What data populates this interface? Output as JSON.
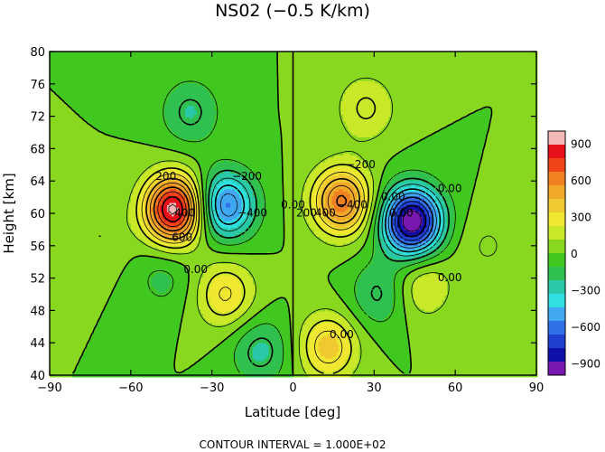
{
  "chart_data": {
    "type": "heatmap",
    "title": "NS02 (−0.5 K/km)",
    "xlabel": "Latitude [deg]",
    "ylabel": "Height [km]",
    "xlim": [
      -90,
      90
    ],
    "ylim": [
      40,
      80
    ],
    "x_ticks": [
      -90,
      -60,
      -30,
      0,
      30,
      60,
      90
    ],
    "y_ticks": [
      40,
      44,
      48,
      52,
      56,
      60,
      64,
      68,
      72,
      76,
      80
    ],
    "x_tick_labels": [
      "−90",
      "−60",
      "−30",
      "0",
      "30",
      "60",
      "90"
    ],
    "y_tick_labels": [
      "40",
      "44",
      "48",
      "52",
      "56",
      "60",
      "64",
      "68",
      "72",
      "76",
      "80"
    ],
    "colorbar": {
      "range": [
        -1000,
        1000
      ],
      "ticks": [
        900,
        600,
        300,
        0,
        -300,
        -600,
        -900
      ],
      "tick_labels": [
        "900",
        "600",
        "300",
        "0",
        "−300",
        "−600",
        "−900"
      ],
      "colors": [
        "#f4b8b8",
        "#e8101a",
        "#f04418",
        "#f08020",
        "#f0a828",
        "#f0c830",
        "#f0e830",
        "#c8e828",
        "#88d820",
        "#40c820",
        "#30c050",
        "#28c8a8",
        "#30e0e0",
        "#40a8f0",
        "#3070e8",
        "#2040d0",
        "#1010a8",
        "#7818b0"
      ]
    },
    "contour_interval": 100,
    "contour_labels": [
      "200",
      "400",
      "600",
      "0.00",
      "−200",
      "−400",
      "0.00",
      "200",
      "400",
      "−200",
      "−400",
      "0.00",
      "0.00",
      "0.00",
      "0.00",
      "0.00"
    ],
    "centers": [
      {
        "lat": -44,
        "h": 60.5,
        "v": 950
      },
      {
        "lat": -25,
        "h": 61,
        "v": -600
      },
      {
        "lat": 18,
        "h": 61.5,
        "v": 620
      },
      {
        "lat": 44,
        "h": 59,
        "v": -1000
      },
      {
        "lat": -38,
        "h": 72.5,
        "v": -230
      },
      {
        "lat": 27,
        "h": 73,
        "v": 220
      },
      {
        "lat": -25,
        "h": 50,
        "v": 320
      },
      {
        "lat": 13,
        "h": 43.5,
        "v": 380
      },
      {
        "lat": -12,
        "h": 43,
        "v": -250
      },
      {
        "lat": 32,
        "h": 50,
        "v": -230
      },
      {
        "lat": 48,
        "h": 51,
        "v": 220
      },
      {
        "lat": -72,
        "h": 57,
        "v": 100
      },
      {
        "lat": 72,
        "h": 56,
        "v": 110
      },
      {
        "lat": -48,
        "h": 52,
        "v": -140
      }
    ],
    "footer": "CONTOUR INTERVAL = 1.000E+02"
  }
}
